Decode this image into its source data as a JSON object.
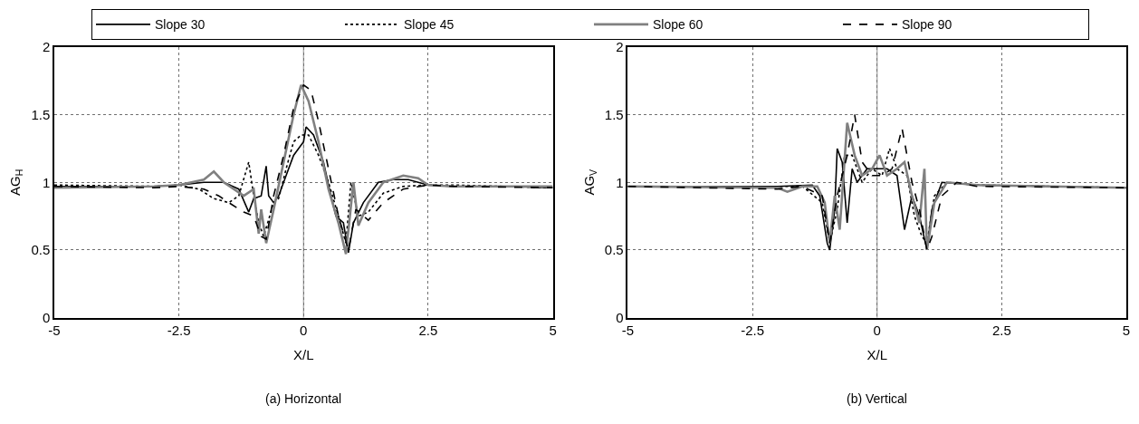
{
  "chart_data": [
    {
      "type": "line",
      "xlabel": "X/L",
      "ylabel": "AG$_{H}$",
      "annotations": [
        "(a) Horizontal"
      ],
      "xlim": [
        -5,
        5
      ],
      "xticks": [
        -5,
        -2.5,
        0,
        2.5,
        5
      ],
      "ylim": [
        0,
        2
      ],
      "yticks": [
        0,
        0.5,
        1,
        1.5,
        2
      ],
      "grid": true,
      "legend": "top",
      "ref_lines": [
        {
          "axis": "x",
          "value": 0,
          "color": "#a0a0a0",
          "line_style": "solid"
        }
      ],
      "series": [
        {
          "name": "Slope 30",
          "color": "#000000",
          "line_style": "solid",
          "x": [
            -5,
            -4,
            -3,
            -2.5,
            -2,
            -1.6,
            -1.3,
            -1.1,
            -1.0,
            -0.85,
            -0.75,
            -0.7,
            -0.6,
            -0.5,
            -0.35,
            -0.2,
            0,
            0.05,
            0.2,
            0.4,
            0.55,
            0.65,
            0.8,
            0.9,
            1.0,
            1.2,
            1.5,
            1.8,
            2.1,
            2.5,
            3,
            4,
            5
          ],
          "values": [
            0.97,
            0.97,
            0.97,
            0.98,
            1.0,
            1.0,
            0.95,
            0.78,
            0.88,
            0.9,
            1.12,
            0.9,
            0.85,
            0.9,
            1.05,
            1.2,
            1.3,
            1.41,
            1.35,
            1.15,
            0.9,
            0.75,
            0.7,
            0.48,
            0.7,
            0.85,
            1.0,
            1.02,
            1.02,
            0.98,
            0.97,
            0.97,
            0.96
          ]
        },
        {
          "name": "Slope 45",
          "color": "#000000",
          "line_style": "dotted",
          "x": [
            -5,
            -3,
            -2.5,
            -2.1,
            -1.8,
            -1.5,
            -1.3,
            -1.1,
            -1.0,
            -0.9,
            -0.8,
            -0.6,
            -0.5,
            -0.35,
            -0.2,
            -0.05,
            0.1,
            0.3,
            0.5,
            0.7,
            0.85,
            0.95,
            1.1,
            1.3,
            1.6,
            2.0,
            2.5,
            3,
            5
          ],
          "values": [
            0.98,
            0.97,
            0.98,
            0.95,
            0.88,
            0.85,
            0.9,
            1.15,
            0.9,
            0.7,
            0.6,
            0.85,
            0.88,
            1.1,
            1.3,
            1.35,
            1.35,
            1.2,
            1.0,
            0.75,
            0.55,
            1.0,
            0.75,
            0.78,
            0.92,
            0.97,
            0.98,
            0.98,
            0.96
          ]
        },
        {
          "name": "Slope 60",
          "color": "#808080",
          "line_style": "solid",
          "x": [
            -5,
            -3,
            -2.5,
            -2.0,
            -1.8,
            -1.6,
            -1.4,
            -1.2,
            -1.0,
            -0.9,
            -0.85,
            -0.75,
            -0.6,
            -0.4,
            -0.2,
            -0.05,
            0.1,
            0.3,
            0.5,
            0.7,
            0.85,
            1.0,
            1.1,
            1.3,
            1.6,
            2.0,
            2.3,
            2.5,
            3,
            5
          ],
          "values": [
            0.96,
            0.97,
            0.98,
            1.02,
            1.08,
            1.0,
            0.95,
            0.9,
            0.95,
            0.62,
            0.8,
            0.55,
            0.8,
            1.15,
            1.5,
            1.72,
            1.6,
            1.3,
            0.95,
            0.7,
            0.47,
            1.0,
            0.68,
            0.85,
            1.0,
            1.05,
            1.03,
            0.98,
            0.97,
            0.97
          ]
        },
        {
          "name": "Slope 90",
          "color": "#000000",
          "line_style": "dashed",
          "x": [
            -5,
            -3,
            -2.5,
            -2.0,
            -1.7,
            -1.5,
            -1.2,
            -1.0,
            -0.85,
            -0.75,
            -0.6,
            -0.4,
            -0.2,
            0,
            0.15,
            0.3,
            0.5,
            0.7,
            0.9,
            1.05,
            1.3,
            1.6,
            2.0,
            2.5,
            3,
            5
          ],
          "values": [
            0.97,
            0.96,
            0.97,
            0.95,
            0.9,
            0.85,
            0.78,
            0.75,
            0.6,
            0.58,
            0.9,
            1.2,
            1.55,
            1.72,
            1.68,
            1.45,
            1.1,
            0.75,
            0.5,
            0.8,
            0.72,
            0.85,
            0.95,
            0.98,
            0.97,
            0.96
          ]
        }
      ]
    },
    {
      "type": "line",
      "xlabel": "X/L",
      "ylabel": "AG$_{V}$",
      "annotations": [
        "(b) Vertical"
      ],
      "xlim": [
        -5,
        5
      ],
      "xticks": [
        -5,
        -2.5,
        0,
        2.5,
        5
      ],
      "ylim": [
        0,
        2
      ],
      "yticks": [
        0,
        0.5,
        1,
        1.5,
        2
      ],
      "grid": true,
      "legend": "top",
      "ref_lines": [
        {
          "axis": "x",
          "value": 0,
          "color": "#a0a0a0",
          "line_style": "solid"
        }
      ],
      "series": [
        {
          "name": "Slope 30",
          "color": "#000000",
          "line_style": "solid",
          "x": [
            -5,
            -2,
            -1.3,
            -1.15,
            -1.0,
            -0.95,
            -0.85,
            -0.8,
            -0.7,
            -0.6,
            -0.5,
            -0.4,
            -0.2,
            0,
            0.2,
            0.4,
            0.55,
            0.7,
            0.85,
            1.0,
            1.1,
            1.3,
            2,
            5
          ],
          "values": [
            0.97,
            0.97,
            0.98,
            0.9,
            0.55,
            0.5,
            0.8,
            1.25,
            1.15,
            0.7,
            1.1,
            1.0,
            1.1,
            1.1,
            1.1,
            1.05,
            0.65,
            0.9,
            0.75,
            0.5,
            0.8,
            1.0,
            0.98,
            0.96
          ]
        },
        {
          "name": "Slope 45",
          "color": "#000000",
          "line_style": "dotted",
          "x": [
            -5,
            -2,
            -1.5,
            -1.1,
            -0.95,
            -0.8,
            -0.65,
            -0.5,
            -0.3,
            -0.1,
            0.1,
            0.25,
            0.4,
            0.6,
            0.75,
            0.9,
            1.0,
            1.15,
            1.4,
            2,
            5
          ],
          "values": [
            0.97,
            0.97,
            0.97,
            0.85,
            0.55,
            0.8,
            1.2,
            1.2,
            1.0,
            1.1,
            1.05,
            1.25,
            1.1,
            1.05,
            0.75,
            0.6,
            0.55,
            0.9,
            1.0,
            0.98,
            0.96
          ]
        },
        {
          "name": "Slope 60",
          "color": "#808080",
          "line_style": "solid",
          "x": [
            -5,
            -2,
            -1.8,
            -1.5,
            -1.2,
            -1.05,
            -0.95,
            -0.85,
            -0.75,
            -0.6,
            -0.45,
            -0.3,
            -0.1,
            0.05,
            0.2,
            0.4,
            0.55,
            0.7,
            0.85,
            0.95,
            1.0,
            1.15,
            1.4,
            2,
            5
          ],
          "values": [
            0.97,
            0.96,
            0.93,
            0.97,
            0.97,
            0.85,
            0.55,
            0.9,
            0.65,
            1.44,
            1.2,
            1.05,
            1.1,
            1.2,
            1.05,
            1.1,
            1.15,
            0.9,
            0.7,
            1.1,
            0.5,
            0.85,
            1.0,
            0.98,
            0.96
          ]
        },
        {
          "name": "Slope 90",
          "color": "#000000",
          "line_style": "dashed",
          "x": [
            -5,
            -2,
            -1.5,
            -1.1,
            -0.95,
            -0.8,
            -0.6,
            -0.45,
            -0.3,
            -0.1,
            0.1,
            0.3,
            0.5,
            0.7,
            0.85,
            1.0,
            1.1,
            1.3,
            1.6,
            2,
            5
          ],
          "values": [
            0.97,
            0.95,
            0.97,
            0.9,
            0.55,
            0.9,
            1.2,
            1.5,
            1.15,
            1.05,
            1.05,
            1.1,
            1.4,
            1.0,
            0.8,
            0.5,
            0.6,
            0.9,
            1.0,
            0.97,
            0.96
          ]
        }
      ]
    }
  ]
}
